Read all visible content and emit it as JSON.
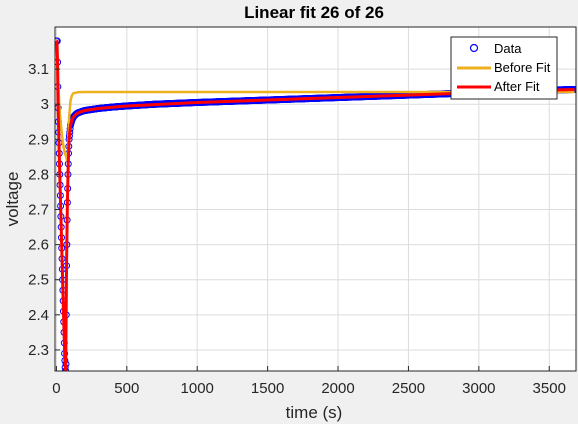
{
  "chart_data": {
    "type": "line",
    "title": "Linear fit 26 of 26",
    "xlabel": "time (s)",
    "ylabel": "voltage",
    "xlim": [
      -10,
      3690
    ],
    "ylim": [
      2.24,
      3.22
    ],
    "xticks": [
      0,
      500,
      1000,
      1500,
      2000,
      2500,
      3000,
      3500
    ],
    "yticks": [
      2.3,
      2.4,
      2.5,
      2.6,
      2.7,
      2.8,
      2.9,
      3.0,
      3.1
    ],
    "ytick_labels": [
      "2.3",
      "2.4",
      "2.5",
      "2.6",
      "2.7",
      "2.8",
      "2.9",
      "3",
      "3.1"
    ],
    "grid": true,
    "legend_position": "top-right",
    "series": [
      {
        "name": "Data",
        "style": "markers",
        "color": "#0000ff",
        "x": [
          0,
          2,
          4,
          6,
          8,
          10,
          12,
          14,
          16,
          18,
          20,
          22,
          24,
          26,
          28,
          30,
          32,
          34,
          36,
          38,
          40,
          42,
          44,
          46,
          48,
          50,
          52,
          54,
          56,
          58,
          60,
          62,
          64,
          66,
          68,
          70,
          72,
          74,
          76,
          78,
          80,
          82,
          84,
          86,
          88,
          90,
          95,
          100,
          110,
          120,
          130,
          140,
          150,
          170,
          200,
          250,
          300,
          400,
          500,
          700,
          1000,
          1500,
          2000,
          2500,
          3000,
          3500,
          3680
        ],
        "y": [
          3.18,
          3.18,
          3.18,
          3.18,
          3.12,
          3.05,
          2.99,
          2.95,
          2.92,
          2.89,
          2.86,
          2.83,
          2.8,
          2.77,
          2.74,
          2.71,
          2.68,
          2.65,
          2.62,
          2.59,
          2.56,
          2.53,
          2.5,
          2.47,
          2.44,
          2.41,
          2.38,
          2.35,
          2.32,
          2.29,
          2.27,
          2.25,
          2.24,
          2.24,
          2.26,
          2.4,
          2.54,
          2.6,
          2.67,
          2.72,
          2.76,
          2.8,
          2.83,
          2.86,
          2.88,
          2.9,
          2.92,
          2.94,
          2.955,
          2.963,
          2.968,
          2.972,
          2.975,
          2.978,
          2.982,
          2.985,
          2.988,
          2.992,
          2.995,
          3.0,
          3.005,
          3.012,
          3.019,
          3.026,
          3.033,
          3.04,
          3.042
        ]
      },
      {
        "name": "Before Fit",
        "style": "line",
        "color": "#edb120",
        "x": [
          0,
          10,
          20,
          30,
          40,
          50,
          60,
          70,
          75,
          80,
          85,
          90,
          100,
          110,
          120,
          150,
          200,
          500,
          1000,
          2000,
          3000,
          3680
        ],
        "y": [
          3.18,
          3.1,
          3.0,
          2.95,
          2.91,
          2.88,
          2.86,
          2.85,
          2.84,
          2.85,
          2.9,
          2.96,
          3.01,
          3.025,
          3.031,
          3.034,
          3.035,
          3.035,
          3.035,
          3.035,
          3.035,
          3.035
        ]
      },
      {
        "name": "After Fit",
        "style": "line",
        "color": "#ff0000",
        "x": [
          0,
          4,
          8,
          12,
          20,
          30,
          40,
          50,
          60,
          66,
          72,
          78,
          84,
          90,
          100,
          110,
          120,
          140,
          170,
          200,
          300,
          500,
          1000,
          1500,
          2000,
          2500,
          3000,
          3500,
          3680
        ],
        "y": [
          3.18,
          3.18,
          3.12,
          2.99,
          2.86,
          2.71,
          2.56,
          2.41,
          2.27,
          2.24,
          2.54,
          2.72,
          2.83,
          2.9,
          2.94,
          2.955,
          2.963,
          2.972,
          2.978,
          2.982,
          2.988,
          2.995,
          3.005,
          3.012,
          3.019,
          3.026,
          3.033,
          3.04,
          3.042
        ]
      }
    ]
  }
}
